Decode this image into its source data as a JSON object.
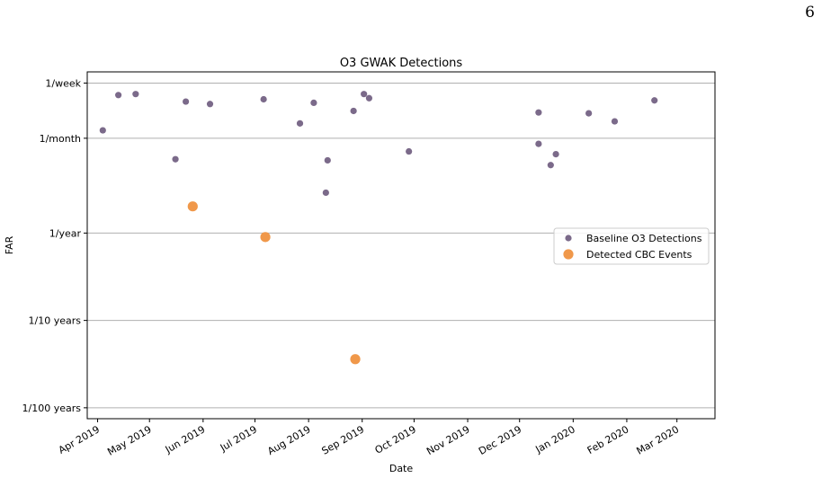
{
  "page": {
    "number": "6"
  },
  "chart_data": {
    "type": "scatter",
    "title": "O3 GWAK Detections",
    "xlabel": "Date",
    "ylabel": "FAR",
    "y_scale": "log",
    "y_unit": "false alarms per year",
    "ylim": [
      0.0075,
      70
    ],
    "xlim": [
      "2019-03-26",
      "2020-03-23"
    ],
    "grid": "horizontal",
    "legend_position": "center-right",
    "x_ticks": [
      {
        "date": "2019-04-01",
        "label": "Apr 2019"
      },
      {
        "date": "2019-05-01",
        "label": "May 2019"
      },
      {
        "date": "2019-06-01",
        "label": "Jun 2019"
      },
      {
        "date": "2019-07-01",
        "label": "Jul 2019"
      },
      {
        "date": "2019-08-01",
        "label": "Aug 2019"
      },
      {
        "date": "2019-09-01",
        "label": "Sep 2019"
      },
      {
        "date": "2019-10-01",
        "label": "Oct 2019"
      },
      {
        "date": "2019-11-01",
        "label": "Nov 2019"
      },
      {
        "date": "2019-12-01",
        "label": "Dec 2019"
      },
      {
        "date": "2020-01-01",
        "label": "Jan 2020"
      },
      {
        "date": "2020-02-01",
        "label": "Feb 2020"
      },
      {
        "date": "2020-03-01",
        "label": "Mar 2020"
      }
    ],
    "y_ticks": [
      {
        "value": 52.14,
        "label": "1/week"
      },
      {
        "value": 12.17,
        "label": "1/month"
      },
      {
        "value": 1,
        "label": "1/year"
      },
      {
        "value": 0.1,
        "label": "1/10 years"
      },
      {
        "value": 0.01,
        "label": "1/100 years"
      }
    ],
    "series": [
      {
        "name": "Baseline O3 Detections",
        "color": "#7b6a8a",
        "marker": "circle",
        "points": [
          {
            "x": "2019-04-04",
            "y": 15.0
          },
          {
            "x": "2019-04-13",
            "y": 38.0
          },
          {
            "x": "2019-04-23",
            "y": 39.0
          },
          {
            "x": "2019-05-16",
            "y": 7.0
          },
          {
            "x": "2019-05-22",
            "y": 32.0
          },
          {
            "x": "2019-06-05",
            "y": 30.0
          },
          {
            "x": "2019-07-06",
            "y": 34.0
          },
          {
            "x": "2019-07-27",
            "y": 18.0
          },
          {
            "x": "2019-08-04",
            "y": 31.0
          },
          {
            "x": "2019-08-11",
            "y": 2.9
          },
          {
            "x": "2019-08-12",
            "y": 6.8
          },
          {
            "x": "2019-08-27",
            "y": 25.0
          },
          {
            "x": "2019-09-02",
            "y": 39.0
          },
          {
            "x": "2019-09-05",
            "y": 35.0
          },
          {
            "x": "2019-09-28",
            "y": 8.6
          },
          {
            "x": "2019-12-12",
            "y": 24.0
          },
          {
            "x": "2019-12-12",
            "y": 10.5
          },
          {
            "x": "2019-12-19",
            "y": 6.0
          },
          {
            "x": "2019-12-22",
            "y": 8.0
          },
          {
            "x": "2020-01-10",
            "y": 23.5
          },
          {
            "x": "2020-01-25",
            "y": 19.0
          },
          {
            "x": "2020-02-17",
            "y": 33.0
          }
        ]
      },
      {
        "name": "Detected CBC Events",
        "color": "#f0984a",
        "marker": "circle",
        "points": [
          {
            "x": "2019-05-26",
            "y": 2.02
          },
          {
            "x": "2019-07-07",
            "y": 0.9
          },
          {
            "x": "2019-08-28",
            "y": 0.036
          }
        ]
      }
    ]
  }
}
